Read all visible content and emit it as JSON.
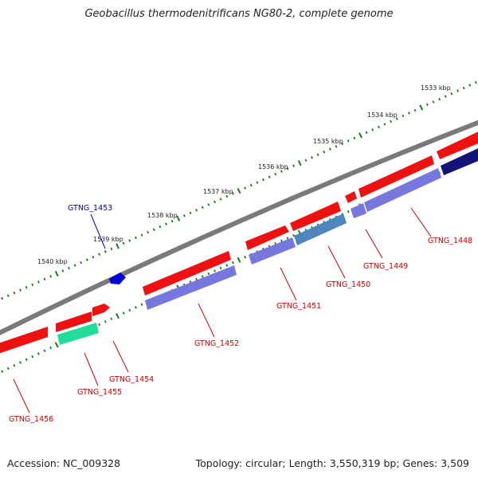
{
  "title": "Geobacillus thermodenitrificans NG80-2, complete genome",
  "footer": {
    "accession": "Accession: NC_009328",
    "summary": "Topology: circular; Length: 3,550,319 bp; Genes: 3,509"
  },
  "colors": {
    "forward_cds": "#ee1111",
    "reverse_cds": "#7777dd",
    "reverse_cds_alt_steel": "#4f86bd",
    "reverse_cds_alt_navy": "#13137a",
    "reverse_cds_alt_green": "#22dd99",
    "backbone": "#7a7a7a",
    "tick": "#1a7a1a",
    "label_red": "#cc0000",
    "label_blue": "#0000bb"
  },
  "scale_labels": [
    "1533 kbp",
    "1534 kbp",
    "1535 kbp",
    "1536 kbp",
    "1537 kbp",
    "1538 kbp",
    "1539 kbp",
    "1540 kbp"
  ],
  "gene_labels": [
    {
      "text": "GTNG_1448",
      "color": "red"
    },
    {
      "text": "GTNG_1449",
      "color": "red"
    },
    {
      "text": "GTNG_1450",
      "color": "red"
    },
    {
      "text": "GTNG_1451",
      "color": "red"
    },
    {
      "text": "GTNG_1452",
      "color": "red"
    },
    {
      "text": "GTNG_1453",
      "color": "blue"
    },
    {
      "text": "GTNG_1454",
      "color": "red"
    },
    {
      "text": "GTNG_1455",
      "color": "red"
    },
    {
      "text": "GTNG_1456",
      "color": "red"
    }
  ]
}
